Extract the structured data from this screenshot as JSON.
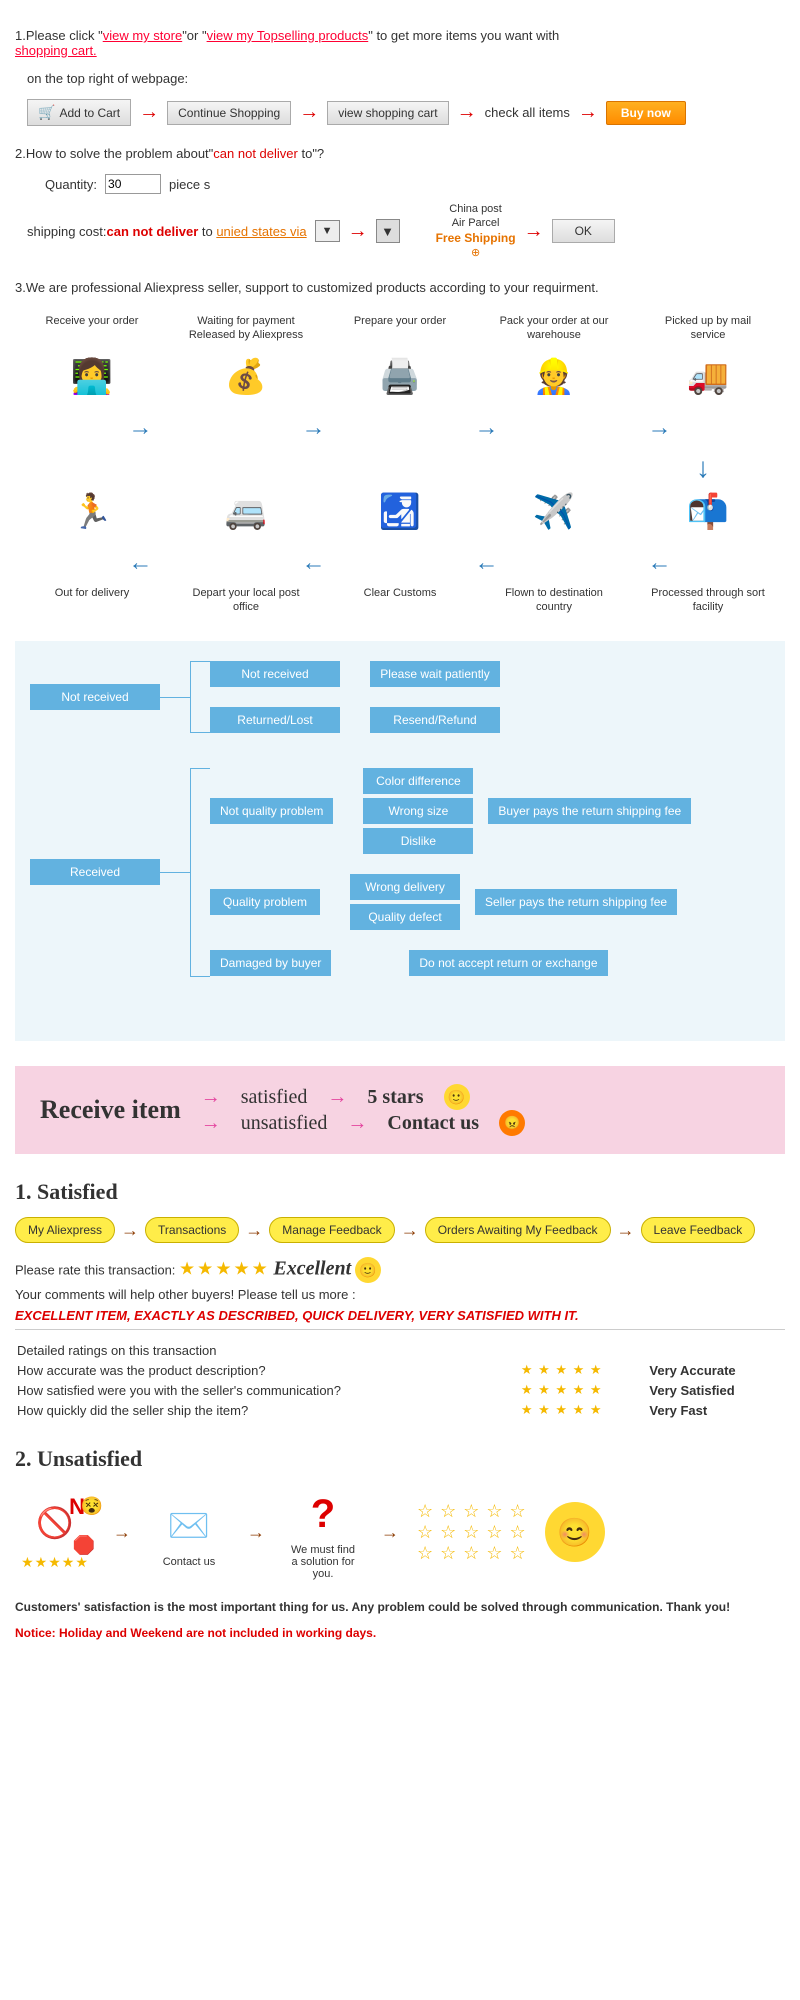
{
  "intro": {
    "l1_a": "1.Please click \"",
    "l1_link1": "view my store",
    "l1_b": "\"or \"",
    "l1_link2": "view my Topselling products",
    "l1_c": "\" to get more items you want with ",
    "l1_link3": "shopping cart.",
    "l2": "on the top right of webpage:",
    "btn_add": "Add to Cart",
    "btn_continue": "Continue Shopping",
    "btn_view": "view shopping cart",
    "btn_check": "check all items",
    "btn_buy": "Buy now"
  },
  "q2": {
    "l1_a": "2.How to solve the problem about\"",
    "l1_red": "can not deliver",
    "l1_b": " to\"?",
    "qty_label": "Quantity:",
    "qty_value": "30",
    "qty_unit": "piece s",
    "ship_a": "shipping cost:",
    "ship_red": "can not deliver",
    "ship_b": " to ",
    "ship_link": "unied states via",
    "cp1": "China post",
    "cp2": "Air Parcel",
    "cp3": "Free Shipping",
    "ok": "OK"
  },
  "q3": "3.We are professional Aliexpress seller, support to customized products according to your requirment.",
  "process_top": [
    {
      "label": "Receive your order",
      "icon": "👩‍💻"
    },
    {
      "label": "Waiting for payment Released by Aliexpress",
      "icon": "💰"
    },
    {
      "label": "Prepare your order",
      "icon": "🖨️"
    },
    {
      "label": "Pack your order at our warehouse",
      "icon": "👷"
    },
    {
      "label": "Picked up by mail service",
      "icon": "🚚"
    }
  ],
  "process_bot": [
    {
      "label": "Out for delivery",
      "icon": "🏃"
    },
    {
      "label": "Depart your local post office",
      "icon": "🚐"
    },
    {
      "label": "Clear Customs",
      "icon": "🛃"
    },
    {
      "label": "Flown to destination country",
      "icon": "✈️"
    },
    {
      "label": "Processed through sort facility",
      "icon": "📬"
    }
  ],
  "flow": {
    "nr": "Not received",
    "nr_1": "Not received",
    "nr_1r": "Please wait patiently",
    "nr_2": "Returned/Lost",
    "nr_2r": "Resend/Refund",
    "rcv": "Received",
    "nqp": "Not quality problem",
    "nqp_a": "Color difference",
    "nqp_b": "Wrong size",
    "nqp_c": "Dislike",
    "nqp_r": "Buyer pays the return shipping fee",
    "qp": "Quality problem",
    "qp_a": "Wrong delivery",
    "qp_b": "Quality defect",
    "qp_r": "Seller pays the return shipping fee",
    "dmg": "Damaged by buyer",
    "dmg_r": "Do not accept return or exchange"
  },
  "pink": {
    "title": "Receive item",
    "sat": "satisfied",
    "unsat": "unsatisfied",
    "five": "5 stars",
    "contact": "Contact us"
  },
  "sat": {
    "heading": "1.  Satisfied",
    "steps": [
      "My Aliexpress",
      "Transactions",
      "Manage Feedback",
      "Orders Awaiting My Feedback",
      "Leave Feedback"
    ],
    "rate_label": "Please rate this transaction:",
    "excellent": "Excellent",
    "comments": "Your comments will help other buyers! Please tell us more :",
    "review": "EXCELLENT ITEM, EXACTLY AS DESCRIBED, QUICK DELIVERY, VERY SATISFIED WITH IT.",
    "dr_head": "Detailed ratings on this transaction",
    "dr_q1": "How accurate was the product description?",
    "dr_q2": "How satisfied were you with the seller's communication?",
    "dr_q3": "How quickly did the seller ship the item?",
    "dr_a1": "Very Accurate",
    "dr_a2": "Very Satisfied",
    "dr_a3": "Very Fast"
  },
  "unsat": {
    "heading": "2.  Unsatisfied",
    "no": "N",
    "step2": "Contact us",
    "step3a": "We must find",
    "step3b": "a solution for",
    "step3c": "you.",
    "foot1": "Customers' satisfaction is the most important thing for us. Any problem could be solved through communication. Thank you!",
    "foot2": "Notice: Holiday and Weekend are not included in working days."
  }
}
